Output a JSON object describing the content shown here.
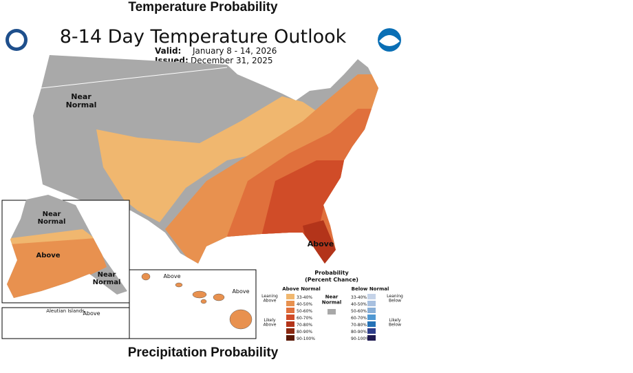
{
  "header": {
    "title": "Temperature Probability"
  },
  "map": {
    "title": "8-14 Day Temperature Outlook",
    "valid_label": "Valid:",
    "valid": "January 8 - 14, 2026",
    "issued_label": "Issued:",
    "issued": "December 31, 2025",
    "conus_near": "Near Normal",
    "conus_above": "Above",
    "alaska_near_top": "Near Normal",
    "alaska_above": "Above",
    "alaska_near_se": "Near Normal",
    "aleutian": "Aleutian Islands",
    "aleutian_above": "Above",
    "hawaii_above_west": "Above",
    "hawaii_above_east": "Above"
  },
  "legend": {
    "title": "Probability",
    "subtitle": "(Percent Chance)",
    "above_header": "Above Normal",
    "below_header": "Below Normal",
    "near": "Near Normal",
    "near_color": "#a8a8a8",
    "leaning_above": "Leaning Above",
    "likely_above": "Likely Above",
    "leaning_below": "Leaning Below",
    "likely_below": "Likely Below",
    "ranges": [
      "33-40%",
      "40-50%",
      "50-60%",
      "60-70%",
      "70-80%",
      "80-90%",
      "90-100%"
    ],
    "above_colors": [
      "#f0b76f",
      "#e8914f",
      "#e0703c",
      "#d04c28",
      "#b3341a",
      "#8a2810",
      "#5a1905"
    ],
    "below_colors": [
      "#c5d3e8",
      "#a8c0df",
      "#89afd7",
      "#4f98d2",
      "#2572b6",
      "#2e3d8a",
      "#1f1a50"
    ]
  },
  "footer": {
    "title": "Precipitation Probability"
  }
}
